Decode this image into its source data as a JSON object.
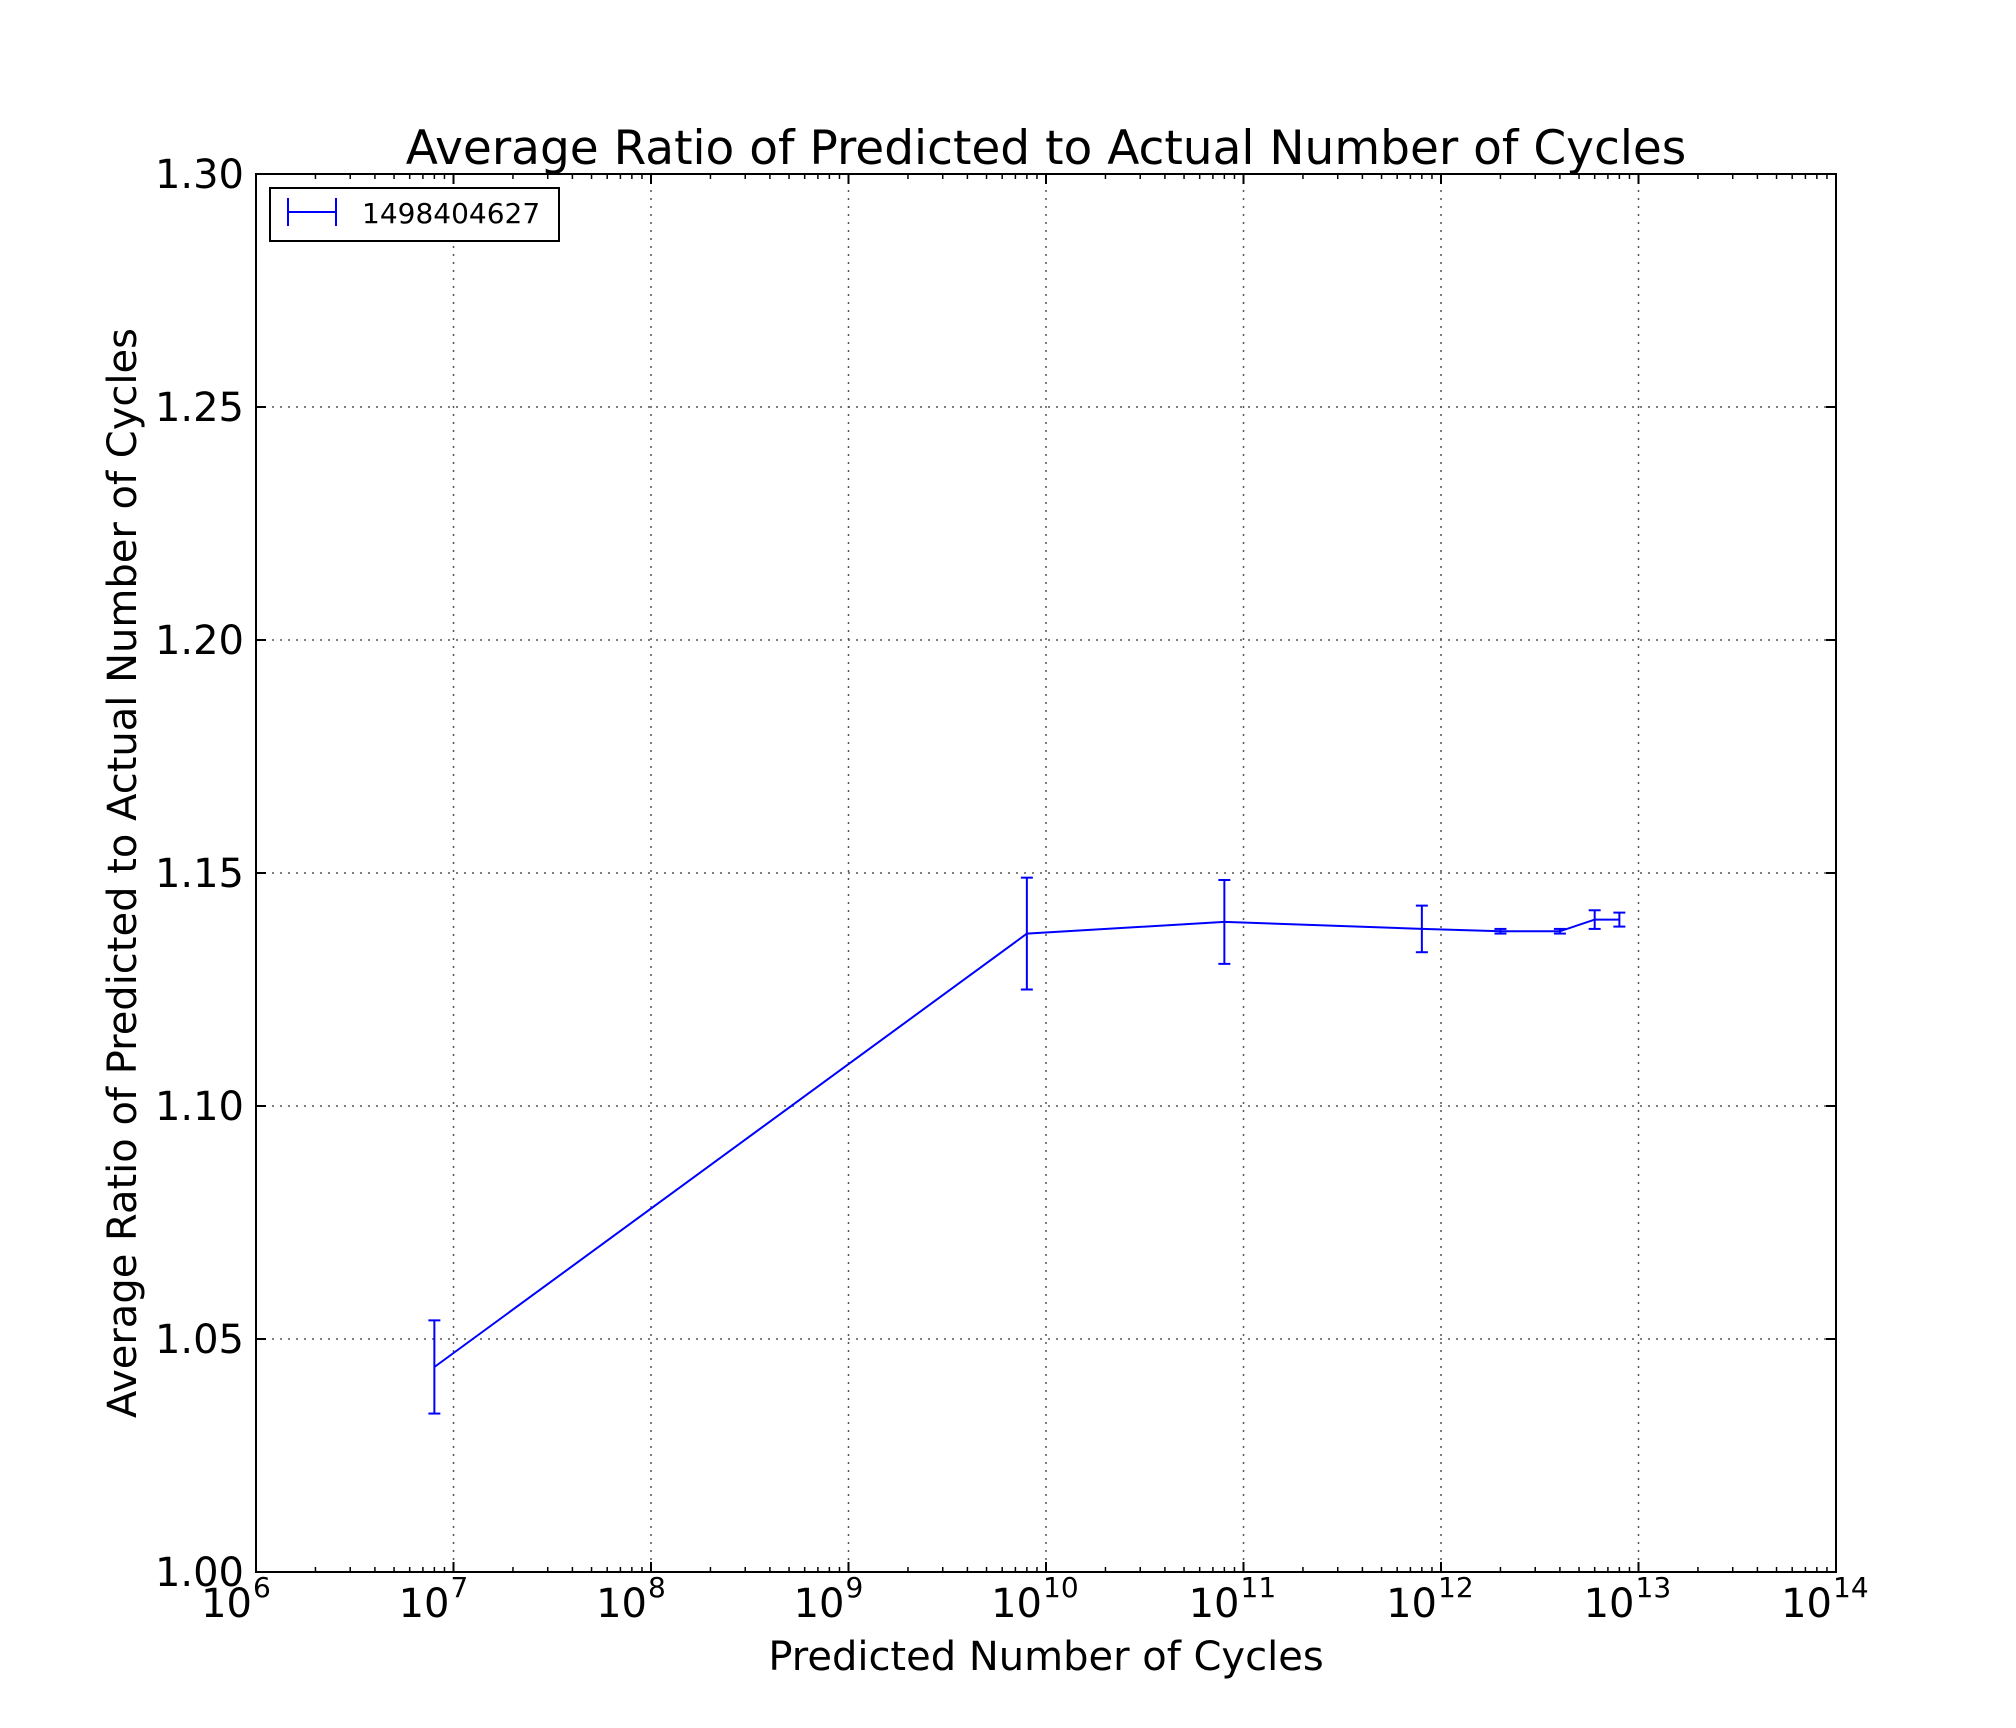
{
  "chart_data": {
    "type": "line",
    "title": "Average Ratio of Predicted to Actual Number of Cycles",
    "xlabel": "Predicted Number of Cycles",
    "ylabel": "Average Ratio of Predicted to Actual Number of Cycles",
    "xscale": "log",
    "xlim": [
      1000000,
      100000000000000
    ],
    "ylim": [
      1.0,
      1.3
    ],
    "grid": true,
    "legend_position": "top-left",
    "x_tick_base": "10",
    "x_tick_exponents": [
      "6",
      "7",
      "8",
      "9",
      "10",
      "11",
      "12",
      "13",
      "14"
    ],
    "y_ticks": [
      "1.00",
      "1.05",
      "1.10",
      "1.15",
      "1.20",
      "1.25",
      "1.30"
    ],
    "line_color": "#0000ff",
    "series": [
      {
        "name": "1498404627",
        "x": [
          8000000,
          8000000000,
          80000000000,
          800000000000,
          2000000000000,
          4000000000000,
          6000000000000,
          8000000000000
        ],
        "y": [
          1.044,
          1.137,
          1.1395,
          1.138,
          1.1375,
          1.1375,
          1.14,
          1.14
        ],
        "yerr": [
          0.01,
          0.012,
          0.009,
          0.005,
          0.0005,
          0.0005,
          0.002,
          0.0015
        ]
      }
    ]
  }
}
